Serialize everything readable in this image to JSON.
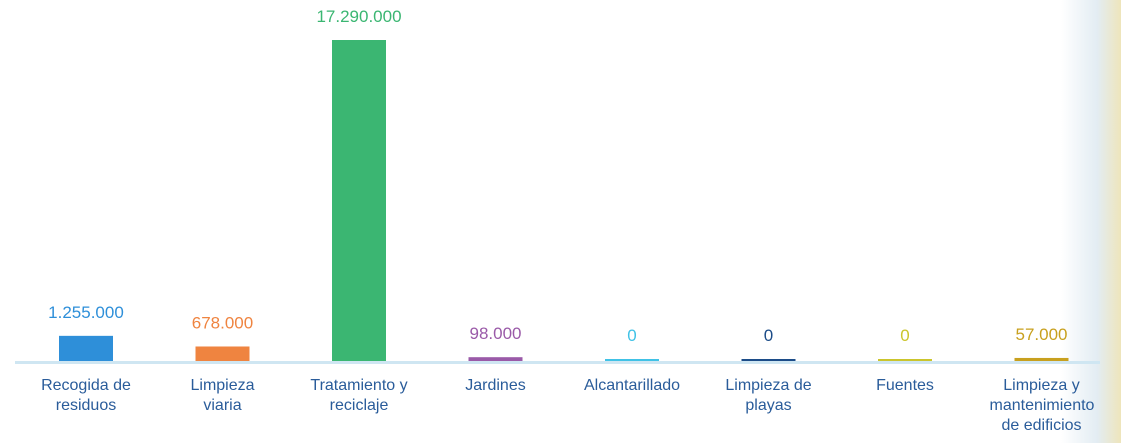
{
  "chart_data": {
    "type": "bar",
    "categories": [
      "Recogida de residuos",
      "Limpieza viaria",
      "Tratamiento y reciclaje",
      "Jardines",
      "Alcantarillado",
      "Limpieza de playas",
      "Fuentes",
      "Limpieza y mantenimiento de edificios"
    ],
    "values": [
      1255000,
      678000,
      17290000,
      98000,
      0,
      0,
      0,
      57000
    ],
    "value_labels": [
      "1.255.000",
      "678.000",
      "17.290.000",
      "98.000",
      "0",
      "0",
      "0",
      "57.000"
    ],
    "colors": [
      "#2e8fd9",
      "#ef8440",
      "#3bb672",
      "#9a5aa8",
      "#40c2e6",
      "#1c4c88",
      "#cbc52c",
      "#c8a01e"
    ]
  }
}
